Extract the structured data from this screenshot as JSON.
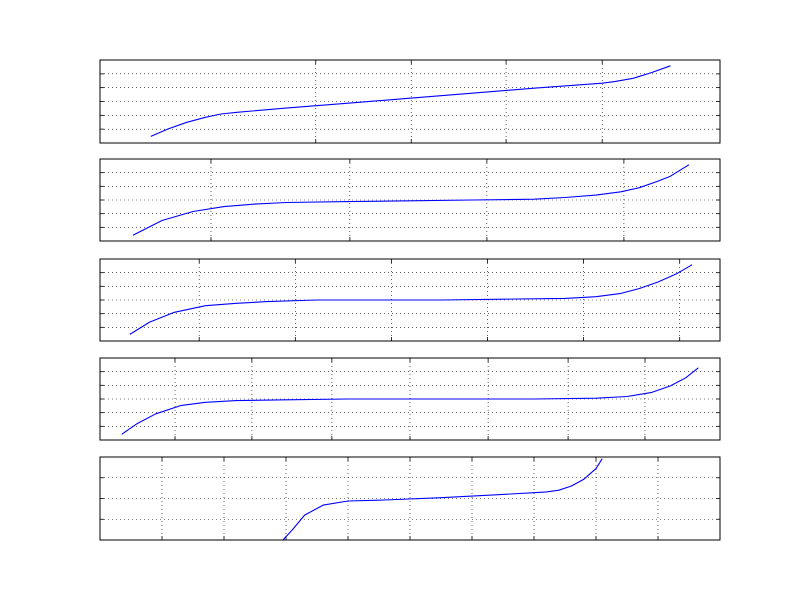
{
  "figure": {
    "background": "#ffffff",
    "axes_color": "#000000",
    "grid_color": "#000000",
    "line_color": "#0000ff"
  },
  "chart_data": [
    {
      "type": "line",
      "title": "",
      "xlabel": "",
      "ylabel": "",
      "xlim": [
        0,
        1
      ],
      "ylim": [
        0,
        1
      ],
      "grid": true,
      "xticks": [
        0.348,
        0.502,
        0.655,
        0.81
      ],
      "yticks": [
        0.167,
        0.333,
        0.5,
        0.667,
        0.833
      ],
      "series": [
        {
          "name": "",
          "color": "#0000ff",
          "x": [
            0.082,
            0.11,
            0.14,
            0.17,
            0.195,
            0.221,
            0.3,
            0.4,
            0.5,
            0.6,
            0.7,
            0.81,
            0.83,
            0.86,
            0.89,
            0.92
          ],
          "y": [
            0.08,
            0.17,
            0.25,
            0.31,
            0.35,
            0.37,
            0.42,
            0.48,
            0.54,
            0.6,
            0.66,
            0.72,
            0.74,
            0.78,
            0.85,
            0.93
          ]
        }
      ]
    },
    {
      "type": "line",
      "title": "",
      "xlabel": "",
      "ylabel": "",
      "xlim": [
        0,
        1
      ],
      "ylim": [
        0,
        1
      ],
      "grid": true,
      "xticks": [
        0.179,
        0.403,
        0.624,
        0.845
      ],
      "yticks": [
        0.167,
        0.333,
        0.5,
        0.667,
        0.833
      ],
      "series": [
        {
          "name": "",
          "color": "#0000ff",
          "x": [
            0.053,
            0.1,
            0.15,
            0.2,
            0.25,
            0.3,
            0.4,
            0.5,
            0.6,
            0.7,
            0.75,
            0.8,
            0.84,
            0.87,
            0.9,
            0.92,
            0.95
          ],
          "y": [
            0.07,
            0.25,
            0.36,
            0.42,
            0.45,
            0.47,
            0.48,
            0.49,
            0.5,
            0.51,
            0.53,
            0.56,
            0.6,
            0.65,
            0.73,
            0.79,
            0.93
          ]
        }
      ]
    },
    {
      "type": "line",
      "title": "",
      "xlabel": "",
      "ylabel": "",
      "xlim": [
        0,
        1
      ],
      "ylim": [
        0,
        1
      ],
      "grid": true,
      "xticks": [
        0.16,
        0.315,
        0.47,
        0.625,
        0.78,
        0.935
      ],
      "yticks": [
        0.167,
        0.333,
        0.5,
        0.667,
        0.833
      ],
      "series": [
        {
          "name": "",
          "color": "#0000ff",
          "x": [
            0.048,
            0.08,
            0.12,
            0.17,
            0.22,
            0.27,
            0.35,
            0.45,
            0.55,
            0.65,
            0.75,
            0.8,
            0.84,
            0.87,
            0.9,
            0.93,
            0.955
          ],
          "y": [
            0.08,
            0.23,
            0.35,
            0.43,
            0.46,
            0.48,
            0.5,
            0.5,
            0.5,
            0.51,
            0.52,
            0.54,
            0.58,
            0.64,
            0.72,
            0.82,
            0.93
          ]
        }
      ]
    },
    {
      "type": "line",
      "title": "",
      "xlabel": "",
      "ylabel": "",
      "xlim": [
        0,
        1
      ],
      "ylim": [
        0,
        1
      ],
      "grid": true,
      "xticks": [
        0.121,
        0.245,
        0.374,
        0.5,
        0.626,
        0.755,
        0.879
      ],
      "yticks": [
        0.167,
        0.333,
        0.5,
        0.667,
        0.833
      ],
      "series": [
        {
          "name": "",
          "color": "#0000ff",
          "x": [
            0.035,
            0.06,
            0.09,
            0.13,
            0.17,
            0.22,
            0.3,
            0.4,
            0.5,
            0.6,
            0.7,
            0.8,
            0.85,
            0.89,
            0.92,
            0.945,
            0.965
          ],
          "y": [
            0.07,
            0.2,
            0.32,
            0.42,
            0.46,
            0.48,
            0.49,
            0.5,
            0.5,
            0.5,
            0.5,
            0.51,
            0.53,
            0.58,
            0.66,
            0.76,
            0.88
          ]
        }
      ]
    },
    {
      "type": "line",
      "title": "",
      "xlabel": "",
      "ylabel": "",
      "xlim": [
        0,
        1
      ],
      "ylim": [
        0,
        1
      ],
      "grid": true,
      "xticks": [
        0.1,
        0.2,
        0.3,
        0.4,
        0.5,
        0.6,
        0.7,
        0.8,
        0.9
      ],
      "yticks": [
        0.25,
        0.5,
        0.75
      ],
      "series": [
        {
          "name": "",
          "color": "#0000ff",
          "x": [
            0.295,
            0.31,
            0.33,
            0.36,
            0.4,
            0.45,
            0.55,
            0.65,
            0.7,
            0.72,
            0.74,
            0.76,
            0.78,
            0.8,
            0.81
          ],
          "y": [
            0.0,
            0.12,
            0.3,
            0.42,
            0.47,
            0.48,
            0.51,
            0.55,
            0.57,
            0.58,
            0.6,
            0.65,
            0.73,
            0.86,
            0.98
          ]
        }
      ]
    }
  ]
}
